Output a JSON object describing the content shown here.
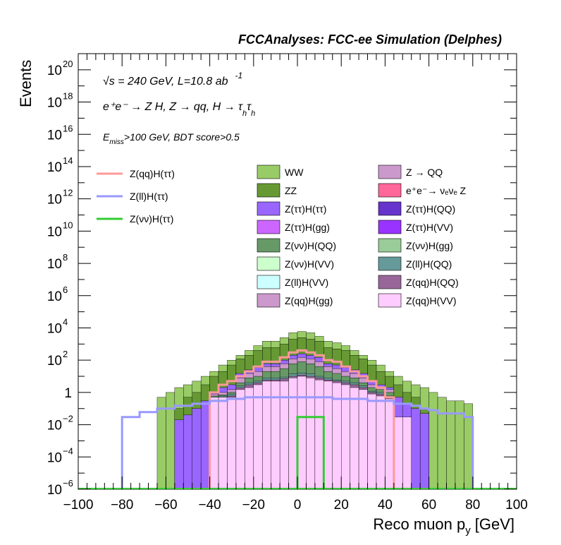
{
  "header": {
    "title": "FCCAnalyses: FCC-ee Simulation (Delphes)"
  },
  "annotations": {
    "energy": "√s = 240 GeV, L=10.8 ab",
    "energy_sup": "-1",
    "process_main": "e⁺e⁻ → Z H, Z → qq, H → τ",
    "process_sub1": "h",
    "process_mid": "τ",
    "process_sub2": "h",
    "emiss_E": "E",
    "emiss_sub": "miss",
    "emiss_rest": ">100 GeV, BDT score>0.5"
  },
  "chart_data": {
    "type": "bar",
    "xlabel": "Reco muon p",
    "xlabel_sub": "y",
    "xlabel_unit": "[GeV]",
    "ylabel": "Events",
    "xlim": [
      -100,
      100
    ],
    "ylim": [
      1e-06,
      1e+21
    ],
    "log_y": true,
    "bin_width": 4,
    "x_ticks": [
      "−100",
      "−80",
      "−60",
      "−40",
      "−20",
      "0",
      "20",
      "40",
      "60",
      "80",
      "100"
    ],
    "y_ticks": [
      {
        "base": "10",
        "exp": "−6",
        "value": 1e-06
      },
      {
        "base": "10",
        "exp": "−4",
        "value": 0.0001
      },
      {
        "base": "10",
        "exp": "−2",
        "value": 0.01
      },
      {
        "base": "1",
        "exp": "",
        "value": 1
      },
      {
        "base": "10",
        "exp": "2",
        "value": 100.0
      },
      {
        "base": "10",
        "exp": "4",
        "value": 10000.0
      },
      {
        "base": "10",
        "exp": "6",
        "value": 1000000.0
      },
      {
        "base": "10",
        "exp": "8",
        "value": 100000000.0
      },
      {
        "base": "10",
        "exp": "10",
        "value": 10000000000.0
      },
      {
        "base": "10",
        "exp": "12",
        "value": 1000000000000.0
      },
      {
        "base": "10",
        "exp": "14",
        "value": 100000000000000.0
      },
      {
        "base": "10",
        "exp": "16",
        "value": 1e+16
      },
      {
        "base": "10",
        "exp": "18",
        "value": 1e+18
      },
      {
        "base": "10",
        "exp": "20",
        "value": 1e+20
      }
    ],
    "stack_envelopes": [
      {
        "name": "Z(qq)H(VV)",
        "color": "#ffccff",
        "points": [
          [
            -40,
            0.5
          ],
          [
            -36,
            0.5
          ],
          [
            -32,
            0.5
          ],
          [
            -28,
            1.5
          ],
          [
            -24,
            2
          ],
          [
            -20,
            3
          ],
          [
            -16,
            5
          ],
          [
            -12,
            5
          ],
          [
            -8,
            5
          ],
          [
            -4,
            8
          ],
          [
            0,
            10
          ],
          [
            4,
            8
          ],
          [
            8,
            6
          ],
          [
            12,
            5
          ],
          [
            16,
            4
          ],
          [
            20,
            3
          ],
          [
            24,
            2
          ],
          [
            28,
            1.5
          ],
          [
            32,
            0.8
          ],
          [
            36,
            0.6
          ],
          [
            40,
            0.4
          ],
          [
            44,
            0.03
          ],
          [
            48,
            0.03
          ]
        ]
      },
      {
        "name": "Z(qq)H(QQ)",
        "color": "#996699",
        "points": [
          [
            -40,
            0.5
          ],
          [
            -36,
            0.5
          ],
          [
            -32,
            0.6
          ],
          [
            -28,
            2
          ],
          [
            -24,
            3
          ],
          [
            -20,
            4
          ],
          [
            -16,
            6
          ],
          [
            -12,
            6
          ],
          [
            -8,
            7
          ],
          [
            -4,
            10
          ],
          [
            0,
            12
          ],
          [
            4,
            10
          ],
          [
            8,
            8
          ],
          [
            12,
            6
          ],
          [
            16,
            5
          ],
          [
            20,
            4
          ],
          [
            24,
            3
          ],
          [
            28,
            2
          ],
          [
            32,
            1
          ],
          [
            36,
            0.8
          ],
          [
            40,
            0.5
          ]
        ]
      },
      {
        "name": "Z(ll)H(QQ)",
        "color": "#669999",
        "points": [
          [
            -40,
            0.5
          ],
          [
            -36,
            0.6
          ],
          [
            -32,
            0.8
          ],
          [
            -28,
            2.5
          ],
          [
            -24,
            4
          ],
          [
            -20,
            5
          ],
          [
            -16,
            8
          ],
          [
            -12,
            8
          ],
          [
            -8,
            9
          ],
          [
            -4,
            14
          ],
          [
            0,
            16
          ],
          [
            4,
            14
          ],
          [
            8,
            10
          ],
          [
            12,
            8
          ],
          [
            16,
            6
          ],
          [
            20,
            5
          ],
          [
            24,
            4
          ],
          [
            28,
            2.5
          ],
          [
            32,
            1.2
          ],
          [
            36,
            1
          ],
          [
            40,
            0.6
          ]
        ]
      },
      {
        "name": "Z(vv)H(QQ)",
        "color": "#669966",
        "points": [
          [
            -40,
            0.6
          ],
          [
            -36,
            0.7
          ],
          [
            -32,
            1
          ],
          [
            -28,
            4
          ],
          [
            -24,
            8
          ],
          [
            -20,
            10
          ],
          [
            -16,
            20
          ],
          [
            -12,
            20
          ],
          [
            -8,
            30
          ],
          [
            -4,
            60
          ],
          [
            0,
            80
          ],
          [
            4,
            60
          ],
          [
            8,
            40
          ],
          [
            12,
            20
          ],
          [
            16,
            15
          ],
          [
            20,
            10
          ],
          [
            24,
            8
          ],
          [
            28,
            4
          ],
          [
            32,
            2
          ],
          [
            36,
            1.5
          ],
          [
            40,
            1
          ]
        ]
      },
      {
        "name": "Z(qq)H(gg)",
        "color": "#cc99cc",
        "points": [
          [
            -40,
            0.8
          ],
          [
            -36,
            1
          ],
          [
            -32,
            1.5
          ],
          [
            -28,
            8
          ],
          [
            -24,
            15
          ],
          [
            -20,
            20
          ],
          [
            -16,
            40
          ],
          [
            -12,
            40
          ],
          [
            -8,
            60
          ],
          [
            -4,
            120
          ],
          [
            0,
            150
          ],
          [
            4,
            120
          ],
          [
            8,
            80
          ],
          [
            12,
            40
          ],
          [
            16,
            30
          ],
          [
            20,
            20
          ],
          [
            24,
            15
          ],
          [
            28,
            8
          ],
          [
            32,
            3
          ],
          [
            36,
            2
          ],
          [
            40,
            1.5
          ]
        ]
      },
      {
        "name": "Z(tautau)H(tautau)",
        "color": "#9966ff",
        "points": [
          [
            -56,
            0.02
          ],
          [
            -52,
            0.04
          ],
          [
            -48,
            0.1
          ],
          [
            -44,
            0.3
          ],
          [
            -40,
            1
          ],
          [
            -36,
            2
          ],
          [
            -32,
            3
          ],
          [
            -28,
            15
          ],
          [
            -24,
            25
          ],
          [
            -20,
            35
          ],
          [
            -16,
            60
          ],
          [
            -12,
            60
          ],
          [
            -8,
            100
          ],
          [
            -4,
            200
          ],
          [
            0,
            250
          ],
          [
            4,
            200
          ],
          [
            8,
            150
          ],
          [
            12,
            60
          ],
          [
            16,
            50
          ],
          [
            20,
            35
          ],
          [
            24,
            25
          ],
          [
            28,
            15
          ],
          [
            32,
            5
          ],
          [
            36,
            3
          ],
          [
            40,
            2
          ],
          [
            44,
            0.5
          ],
          [
            48,
            0.2
          ],
          [
            52,
            0.1
          ],
          [
            56,
            0.05
          ]
        ]
      },
      {
        "name": "ZZ",
        "color": "#669933",
        "points": [
          [
            -56,
            0.1
          ],
          [
            -52,
            0.5
          ],
          [
            -48,
            1
          ],
          [
            -44,
            3
          ],
          [
            -40,
            10
          ],
          [
            -36,
            20
          ],
          [
            -32,
            50
          ],
          [
            -28,
            120
          ],
          [
            -24,
            200
          ],
          [
            -20,
            400
          ],
          [
            -16,
            600
          ],
          [
            -12,
            600
          ],
          [
            -8,
            1000
          ],
          [
            -4,
            2000
          ],
          [
            0,
            2500
          ],
          [
            4,
            2000
          ],
          [
            8,
            1500
          ],
          [
            12,
            600
          ],
          [
            16,
            500
          ],
          [
            20,
            400
          ],
          [
            24,
            200
          ],
          [
            28,
            120
          ],
          [
            32,
            50
          ],
          [
            36,
            20
          ],
          [
            40,
            10
          ],
          [
            44,
            3
          ],
          [
            48,
            1
          ],
          [
            52,
            0.5
          ],
          [
            56,
            0.1
          ]
        ]
      },
      {
        "name": "WW",
        "color": "#99cc66",
        "points": [
          [
            -64,
            0.5
          ],
          [
            -60,
            1
          ],
          [
            -56,
            2
          ],
          [
            -52,
            3
          ],
          [
            -48,
            5
          ],
          [
            -44,
            10
          ],
          [
            -40,
            20
          ],
          [
            -36,
            50
          ],
          [
            -32,
            100
          ],
          [
            -28,
            200
          ],
          [
            -24,
            400
          ],
          [
            -20,
            800
          ],
          [
            -16,
            1500
          ],
          [
            -12,
            1500
          ],
          [
            -8,
            2500
          ],
          [
            -4,
            5000
          ],
          [
            0,
            6000
          ],
          [
            4,
            5000
          ],
          [
            8,
            3000
          ],
          [
            12,
            1500
          ],
          [
            16,
            1200
          ],
          [
            20,
            800
          ],
          [
            24,
            400
          ],
          [
            28,
            200
          ],
          [
            32,
            100
          ],
          [
            36,
            50
          ],
          [
            40,
            20
          ],
          [
            44,
            10
          ],
          [
            48,
            5
          ],
          [
            52,
            3
          ],
          [
            56,
            2
          ],
          [
            60,
            1
          ],
          [
            64,
            0.5
          ],
          [
            68,
            0.3
          ],
          [
            72,
            0.3
          ],
          [
            76,
            0.2
          ]
        ]
      }
    ],
    "series": [
      {
        "name": "Z(qq)H(ττ)",
        "color": "#ff9999",
        "points": [
          [
            -40,
            1
          ],
          [
            -36,
            3
          ],
          [
            -32,
            5
          ],
          [
            -28,
            10
          ],
          [
            -24,
            20
          ],
          [
            -20,
            40
          ],
          [
            -16,
            80
          ],
          [
            -12,
            80
          ],
          [
            -8,
            150
          ],
          [
            -4,
            300
          ],
          [
            0,
            400
          ],
          [
            4,
            300
          ],
          [
            8,
            200
          ],
          [
            12,
            100
          ],
          [
            16,
            80
          ],
          [
            20,
            40
          ],
          [
            24,
            20
          ],
          [
            28,
            10
          ],
          [
            32,
            5
          ],
          [
            36,
            2
          ],
          [
            40,
            0.5
          ]
        ]
      },
      {
        "name": "Z(ll)H(ττ)",
        "color": "#9999ff",
        "points": [
          [
            -80,
            0.03
          ],
          [
            -76,
            0.03
          ],
          [
            -72,
            0.06
          ],
          [
            -68,
            0.06
          ],
          [
            -64,
            0.1
          ],
          [
            -60,
            0.1
          ],
          [
            -56,
            0.15
          ],
          [
            -52,
            0.15
          ],
          [
            -48,
            0.2
          ],
          [
            -44,
            0.2
          ],
          [
            -40,
            0.3
          ],
          [
            -36,
            0.3
          ],
          [
            -32,
            0.4
          ],
          [
            -28,
            0.4
          ],
          [
            -24,
            0.5
          ],
          [
            -20,
            0.5
          ],
          [
            -16,
            0.5
          ],
          [
            -12,
            0.5
          ],
          [
            -8,
            0.5
          ],
          [
            -4,
            0.5
          ],
          [
            0,
            0.5
          ],
          [
            4,
            0.5
          ],
          [
            8,
            0.5
          ],
          [
            12,
            0.5
          ],
          [
            16,
            0.4
          ],
          [
            20,
            0.4
          ],
          [
            24,
            0.4
          ],
          [
            28,
            0.4
          ],
          [
            32,
            0.3
          ],
          [
            36,
            0.3
          ],
          [
            40,
            0.3
          ],
          [
            44,
            0.2
          ],
          [
            48,
            0.2
          ],
          [
            52,
            0.15
          ],
          [
            56,
            0.1
          ],
          [
            60,
            0.08
          ],
          [
            64,
            0.05
          ],
          [
            68,
            0.05
          ],
          [
            72,
            0.05
          ],
          [
            76,
            0.03
          ]
        ]
      },
      {
        "name": "Z(νν)H(ττ)",
        "color": "#33cc33",
        "points": [
          [
            0,
            0.03
          ],
          [
            4,
            0.03
          ],
          [
            8,
            0.03
          ]
        ]
      }
    ],
    "legend": {
      "placement": "top-right",
      "lines": [
        {
          "name": "Z(qq)H(ττ)",
          "color": "#ff9999"
        },
        {
          "name": "Z(ll)H(ττ)",
          "color": "#9999ff"
        },
        {
          "name": "Z(νν)H(ττ)",
          "color": "#33cc33"
        }
      ],
      "boxes_col1": [
        {
          "name": "WW",
          "color": "#99cc66"
        },
        {
          "name": "ZZ",
          "color": "#669933"
        },
        {
          "name": "Z(ττ)H(ττ)",
          "color": "#9966ff"
        },
        {
          "name": "Z(ττ)H(gg)",
          "color": "#cc66ff"
        },
        {
          "name": "Z(νν)H(QQ)",
          "color": "#669966"
        },
        {
          "name": "Z(νν)H(VV)",
          "color": "#ccffcc"
        },
        {
          "name": "Z(ll)H(VV)",
          "color": "#ccffff"
        },
        {
          "name": "Z(qq)H(gg)",
          "color": "#cc99cc"
        }
      ],
      "boxes_col2": [
        {
          "name": "Z → QQ",
          "color": "#cc99cc"
        },
        {
          "name": "e⁺e⁻→ νₑνₑ Z",
          "color": "#ff6699"
        },
        {
          "name": "Z(ττ)H(QQ)",
          "color": "#6633cc"
        },
        {
          "name": "Z(ττ)H(VV)",
          "color": "#9933ff"
        },
        {
          "name": "Z(νν)H(gg)",
          "color": "#99cc99"
        },
        {
          "name": "Z(ll)H(QQ)",
          "color": "#669999"
        },
        {
          "name": "Z(qq)H(QQ)",
          "color": "#996699"
        },
        {
          "name": "Z(qq)H(VV)",
          "color": "#ffccff"
        }
      ]
    }
  }
}
